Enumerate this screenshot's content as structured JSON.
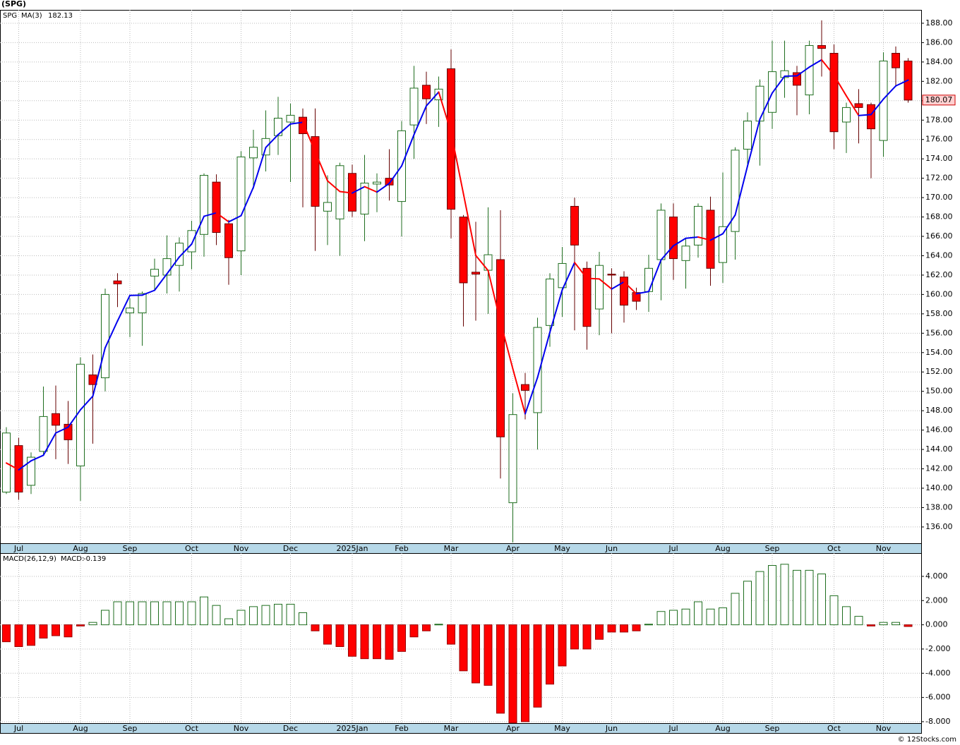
{
  "footer": "© 12Stocks.com",
  "chart_data": [
    {
      "type": "candlestick",
      "title": "(SPG)",
      "symbol": "SPG",
      "categories": [
        null,
        "Jul",
        null,
        null,
        null,
        null,
        "Aug",
        null,
        null,
        null,
        "Sep",
        null,
        null,
        null,
        null,
        "Oct",
        null,
        null,
        null,
        "Nov",
        null,
        null,
        null,
        "Dec",
        null,
        null,
        null,
        null,
        "2025Jan",
        null,
        null,
        null,
        "Feb",
        null,
        null,
        null,
        "Mar",
        null,
        null,
        null,
        null,
        "Apr",
        null,
        null,
        null,
        "May",
        null,
        null,
        null,
        "Jun",
        null,
        null,
        null,
        null,
        "Jul",
        null,
        null,
        null,
        "Aug",
        null,
        null,
        null,
        "Sep",
        null,
        null,
        null,
        null,
        "Oct",
        null,
        null,
        null,
        "Nov",
        null,
        null
      ],
      "open": [
        139.6,
        144.4,
        140.3,
        143.8,
        147.7,
        146.6,
        142.3,
        151.7,
        151.4,
        161.4,
        158.1,
        158.1,
        161.9,
        162.0,
        163.0,
        164.4,
        166.2,
        171.6,
        167.3,
        164.5,
        174.1,
        174.4,
        176.4,
        177.8,
        178.3,
        176.3,
        168.6,
        167.8,
        172.5,
        168.3,
        171.4,
        172.0,
        169.6,
        177.5,
        181.6,
        180.1,
        183.3,
        168.0,
        162.3,
        162.5,
        163.6,
        138.5,
        150.7,
        147.8,
        156.8,
        160.7,
        169.1,
        162.7,
        158.5,
        162.1,
        161.8,
        160.2,
        160.3,
        163.6,
        168.0,
        163.5,
        165.1,
        168.7,
        163.3,
        166.5,
        175.0,
        177.9,
        178.8,
        182.4,
        182.9,
        180.6,
        185.7,
        184.9,
        177.8,
        179.7,
        179.6,
        175.9,
        184.9,
        184.1
      ],
      "high": [
        146.3,
        145.2,
        143.7,
        150.5,
        150.6,
        149.0,
        153.5,
        153.8,
        160.6,
        162.2,
        159.6,
        160.3,
        163.7,
        166.1,
        165.9,
        167.6,
        172.5,
        172.4,
        167.7,
        174.8,
        177.0,
        179.0,
        180.4,
        179.7,
        179.2,
        179.2,
        172.3,
        173.6,
        173.4,
        174.4,
        172.5,
        175.0,
        177.9,
        183.6,
        183.0,
        182.5,
        185.3,
        168.2,
        167.5,
        169.0,
        168.7,
        149.8,
        151.9,
        157.6,
        162.2,
        164.9,
        170.0,
        163.4,
        164.4,
        162.7,
        162.4,
        160.7,
        164.1,
        169.4,
        169.4,
        165.8,
        169.4,
        170.1,
        172.6,
        175.2,
        178.8,
        182.2,
        186.2,
        186.2,
        183.6,
        186.2,
        188.3,
        185.8,
        179.8,
        181.2,
        179.8,
        185.0,
        185.6,
        184.4
      ],
      "low": [
        139.4,
        138.8,
        139.4,
        143.5,
        143.0,
        142.5,
        138.7,
        144.6,
        150.0,
        158.7,
        155.6,
        154.7,
        160.4,
        160.1,
        160.3,
        162.6,
        163.9,
        165.1,
        161.0,
        162.0,
        170.9,
        172.7,
        174.4,
        171.6,
        169.0,
        164.5,
        165.1,
        164.0,
        168.0,
        165.5,
        168.5,
        169.7,
        166.0,
        174.0,
        177.6,
        177.3,
        165.8,
        156.7,
        157.3,
        158.0,
        141.0,
        134.4,
        147.1,
        144.0,
        154.6,
        157.7,
        156.3,
        154.3,
        155.8,
        156.0,
        157.1,
        158.4,
        158.2,
        159.4,
        161.5,
        160.6,
        163.8,
        160.9,
        161.2,
        163.6,
        173.2,
        173.3,
        177.1,
        180.3,
        178.5,
        178.6,
        182.5,
        175.0,
        174.6,
        175.6,
        172.0,
        174.2,
        181.6,
        179.8
      ],
      "close": [
        145.7,
        139.6,
        143.2,
        147.4,
        146.5,
        145.0,
        152.8,
        150.7,
        160.0,
        161.1,
        158.6,
        160.1,
        162.6,
        163.7,
        165.3,
        166.6,
        172.3,
        166.4,
        163.8,
        174.2,
        175.2,
        176.1,
        178.2,
        178.5,
        176.6,
        169.1,
        169.5,
        173.3,
        168.6,
        171.5,
        171.6,
        171.3,
        176.9,
        181.3,
        180.2,
        181.2,
        168.8,
        161.2,
        162.1,
        164.1,
        145.3,
        147.6,
        150.1,
        156.6,
        161.6,
        163.2,
        165.1,
        156.7,
        163.0,
        162.0,
        158.9,
        159.3,
        162.7,
        168.7,
        163.7,
        165.0,
        169.1,
        162.7,
        167.0,
        174.9,
        177.9,
        181.5,
        183.0,
        183.1,
        181.6,
        185.7,
        185.4,
        176.8,
        179.3,
        179.3,
        177.1,
        184.1,
        183.4,
        180.07
      ],
      "up_color": "#1f6e1f",
      "down_color": "#ff0000",
      "overlay": {
        "name": "MA(3)",
        "up_color": "#0000ee",
        "down_color": "#ff0000",
        "values": [
          142.6,
          141.9,
          142.83,
          143.4,
          145.7,
          146.3,
          148.1,
          149.5,
          154.5,
          157.27,
          159.9,
          159.93,
          160.43,
          162.13,
          163.87,
          165.2,
          168.07,
          168.43,
          167.5,
          168.13,
          171.07,
          175.17,
          176.5,
          177.6,
          177.77,
          174.73,
          171.73,
          170.63,
          170.47,
          171.13,
          170.57,
          171.47,
          173.27,
          176.5,
          179.47,
          180.9,
          176.73,
          170.4,
          164.03,
          162.47,
          157.17,
          152.33,
          147.67,
          151.43,
          156.1,
          160.47,
          163.3,
          161.67,
          161.6,
          160.57,
          161.3,
          160.07,
          160.3,
          163.57,
          165.03,
          165.8,
          165.93,
          165.6,
          166.27,
          168.2,
          173.27,
          178.1,
          180.8,
          182.53,
          182.57,
          183.47,
          184.23,
          182.63,
          180.5,
          178.47,
          178.57,
          180.17,
          181.53,
          182.13
        ]
      },
      "ylim": [
        134.32,
        189.38
      ],
      "yticks": [
        {
          "value": 136,
          "label": "136.00"
        },
        {
          "value": 138,
          "label": "138.00"
        },
        {
          "value": 140,
          "label": "140.00"
        },
        {
          "value": 142,
          "label": "142.00"
        },
        {
          "value": 144,
          "label": "144.00"
        },
        {
          "value": 146,
          "label": "146.00"
        },
        {
          "value": 148,
          "label": "148.00"
        },
        {
          "value": 150,
          "label": "150.00"
        },
        {
          "value": 152,
          "label": "152.00"
        },
        {
          "value": 154,
          "label": "154.00"
        },
        {
          "value": 156,
          "label": "156.00"
        },
        {
          "value": 158,
          "label": "158.00"
        },
        {
          "value": 160,
          "label": "160.00"
        },
        {
          "value": 162,
          "label": "162.00"
        },
        {
          "value": 164,
          "label": "164.00"
        },
        {
          "value": 166,
          "label": "166.00"
        },
        {
          "value": 168,
          "label": "168.00"
        },
        {
          "value": 170,
          "label": "170.00"
        },
        {
          "value": 172,
          "label": "172.00"
        },
        {
          "value": 174,
          "label": "174.00"
        },
        {
          "value": 176,
          "label": "176.00"
        },
        {
          "value": 178,
          "label": "178.00"
        },
        {
          "value": 180,
          "label": "180.00"
        },
        {
          "value": 182,
          "label": "182.00"
        },
        {
          "value": 184,
          "label": "184.00"
        },
        {
          "value": 186,
          "label": "186.00"
        },
        {
          "value": 188,
          "label": "188.00"
        }
      ],
      "grid": true
    },
    {
      "type": "bar",
      "title": "MACD(26,12,9)",
      "value_name": "MACD:",
      "categories": [
        null,
        "Jul",
        null,
        null,
        null,
        null,
        "Aug",
        null,
        null,
        null,
        "Sep",
        null,
        null,
        null,
        null,
        "Oct",
        null,
        null,
        null,
        "Nov",
        null,
        null,
        null,
        "Dec",
        null,
        null,
        null,
        null,
        "2025Jan",
        null,
        null,
        null,
        "Feb",
        null,
        null,
        null,
        "Mar",
        null,
        null,
        null,
        null,
        "Apr",
        null,
        null,
        null,
        "May",
        null,
        null,
        null,
        "Jun",
        null,
        null,
        null,
        null,
        "Jul",
        null,
        null,
        null,
        "Aug",
        null,
        null,
        null,
        "Sep",
        null,
        null,
        null,
        null,
        "Oct",
        null,
        null,
        null,
        "Nov",
        null,
        null
      ],
      "values": [
        -1.4,
        -1.8,
        -1.7,
        -1.1,
        -0.9,
        -1.0,
        -0.1,
        0.2,
        1.2,
        1.9,
        1.9,
        1.9,
        1.9,
        1.9,
        1.9,
        1.9,
        2.3,
        1.6,
        0.5,
        1.2,
        1.5,
        1.6,
        1.7,
        1.7,
        1.0,
        -0.5,
        -1.6,
        -1.8,
        -2.6,
        -2.8,
        -2.8,
        -2.85,
        -2.2,
        -1.0,
        -0.5,
        0.05,
        -1.6,
        -3.8,
        -4.8,
        -5.0,
        -7.3,
        -8.1,
        -8.0,
        -6.8,
        -4.9,
        -3.4,
        -2.0,
        -2.0,
        -1.2,
        -0.6,
        -0.6,
        -0.5,
        0.05,
        1.1,
        1.2,
        1.3,
        1.9,
        1.3,
        1.4,
        2.6,
        3.6,
        4.4,
        4.9,
        5.0,
        4.5,
        4.5,
        4.2,
        2.4,
        1.5,
        0.7,
        -0.1,
        0.2,
        0.2,
        -0.139
      ],
      "up_color": "#1f6e1f",
      "down_color": "#ff0000",
      "ylim": [
        -8.12,
        5.92
      ],
      "yticks": [
        {
          "value": -8,
          "label": "-8.000"
        },
        {
          "value": -6,
          "label": "-6.000"
        },
        {
          "value": -4,
          "label": "-4.000"
        },
        {
          "value": -2,
          "label": "-2.000"
        },
        {
          "value": 0,
          "label": "0.000"
        },
        {
          "value": 2,
          "label": "2.000"
        },
        {
          "value": 4,
          "label": "4.000"
        }
      ],
      "grid": true
    }
  ]
}
